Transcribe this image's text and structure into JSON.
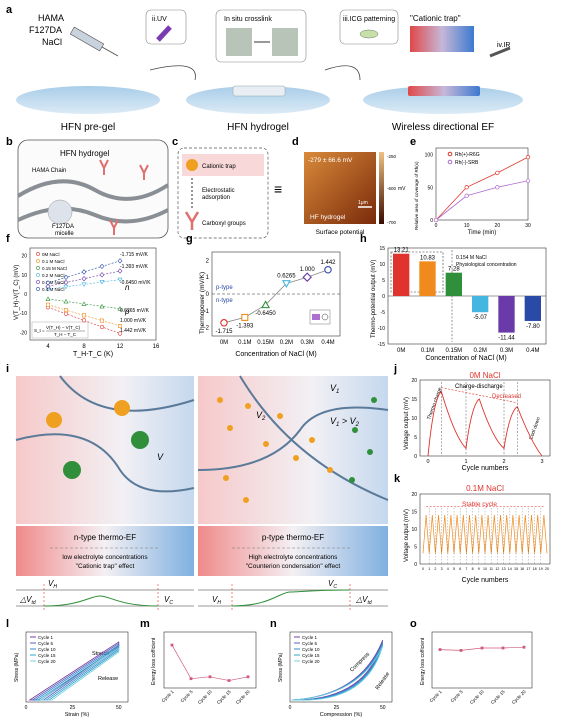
{
  "colors": {
    "red": "#e0332d",
    "orange": "#f08a1c",
    "green": "#2f8f3a",
    "cyan": "#44b6e0",
    "purple": "#6a3aa8",
    "blue": "#2a4aa8",
    "pink": "#f4c9c9",
    "lightblue": "#c9dcef"
  },
  "panel_letters": {
    "a": "a",
    "b": "b",
    "c": "c",
    "d": "d",
    "e": "e",
    "f": "f",
    "g": "g",
    "h": "h",
    "i": "i",
    "j": "j",
    "k": "k",
    "l": "l",
    "m": "m",
    "n": "n",
    "o": "o"
  },
  "a": {
    "reagents": [
      "HAMA",
      "F127DA",
      "NaCl"
    ],
    "step1": "ii.UV",
    "step2": "In situ crosslink",
    "step3": "iii.ICG patterning",
    "trap": "\"Cationic trap\"",
    "step4": "iv.IR",
    "label1": "HFN pre-gel",
    "label2": "HFN hydrogel",
    "label3": "Wireless directional EF"
  },
  "b": {
    "title": "HFN hydrogel",
    "chain": "HAMA Chain",
    "micelle1": "F127DA",
    "micelle2": "micelle"
  },
  "c": {
    "item1": "Cationic trap",
    "item2a": "Electrostatic",
    "item2b": "adsorption",
    "item3": "Carboxyl groups"
  },
  "d": {
    "value": "-279 ± 66.6 mV",
    "scale": "1μm",
    "label": "HF hydrogel",
    "caption": "Surface potential",
    "unit": "mV",
    "ticks": [
      "-250",
      "-600",
      "-700"
    ]
  },
  "e": {
    "ylabel": "Relative area of coverage of Rh(x)",
    "xlabel": "Time (min)",
    "legend": [
      "Rh(+)-R6G",
      "Rh(-)-SRB"
    ],
    "yticks": [
      "0",
      "50",
      "100"
    ],
    "xticks": [
      "0",
      "10",
      "20",
      "30"
    ]
  },
  "f": {
    "ylabel": "V(T_H)-V(T_C) (mV)",
    "xlabel": "T_H-T_C (K)",
    "legend": [
      "0M NaCl",
      "0.1 M NaCl",
      "0.15 M NaCl",
      "0.2 M NaCl",
      "0.3 M NaCl",
      "0.4 M NaCl"
    ],
    "values": [
      "-1.715 mV/K",
      "-1.393 mV/K",
      "-0.6450 mV/K",
      "0.6265 mV/K",
      "1.000 mV/K",
      "1.442 mV/K"
    ],
    "xticks": [
      "4",
      "8",
      "12",
      "16"
    ],
    "yticks": [
      "20",
      "10",
      "0",
      "-10",
      "-20"
    ],
    "n_label": "n",
    "p_label": "p",
    "formula_a": "S_t = ",
    "formula_b": "V(T_H) − V(T_C)",
    "formula_c": "T_H − T_C"
  },
  "g": {
    "ylabel": "Thermopower (mV/K)",
    "xlabel": "Concentration of NaCl (M)",
    "ptype": "p-type",
    "ntype": "n-type",
    "yticks": [
      "2",
      "1",
      "0",
      "-1",
      "-2"
    ]
  },
  "h": {
    "ylabel": "Thermo-potential output (mV)",
    "xlabel": "Concentration of NaCl (M)",
    "note_a": "0.154 M NaCl",
    "note_b": "Physiological concentration",
    "yticks": [
      "15",
      "10",
      "5",
      "0",
      "-5",
      "-10",
      "-15"
    ]
  },
  "i": {
    "v1": "V",
    "v1sub": "1",
    "v2": "V",
    "v2sub": "2",
    "vcomp_a": "V",
    "vcomp_b": "1",
    "vcomp_c": " > V",
    "vcomp_d": "2",
    "vsingle": "V",
    "ntitle": "n-type thermo-EF",
    "ptitle": "p-type thermo-EF",
    "nsub1": "low electrolyte concentrations",
    "nsub2": "\"Cationic trap\" effect",
    "psub1": "High electrolyte concentrations",
    "psub2": "\"Counterion condensation\" effect",
    "vh": "V",
    "vh_sub": "H",
    "vc": "V",
    "vc_sub": "C",
    "dv": "△V",
    "dv_sub": "td"
  },
  "j": {
    "title": "0M NaCl",
    "ylabel": "Voltage output (mV)",
    "xlabel": "Cycle numbers",
    "charge": "Charge-discharge",
    "decreased": "Decreased",
    "thermo": "Thermo charge",
    "cool": "Cool down",
    "yticks": [
      "20",
      "15",
      "10",
      "5",
      "0"
    ],
    "xticks": [
      "0",
      "1",
      "2",
      "3"
    ]
  },
  "k": {
    "title": "0.1M NaCl",
    "ylabel": "Voltage output (mV)",
    "xlabel": "Cycle numbers",
    "stable": "Stable cycle",
    "yticks": [
      "20",
      "15",
      "10",
      "5",
      "0"
    ],
    "xticks": [
      "0",
      "1",
      "2",
      "3",
      "4",
      "5",
      "6",
      "7",
      "8",
      "9",
      "10",
      "11",
      "12",
      "13",
      "14",
      "15",
      "16",
      "17",
      "18",
      "19",
      "20"
    ]
  },
  "l": {
    "ylabel": "Stress (MPa)",
    "xlabel": "Strain (%)",
    "legend": [
      "Cycle 1",
      "Cycle 5",
      "Cycle 10",
      "Cycle 15",
      "Cycle 20"
    ],
    "stretch": "Stretch",
    "release": "Release",
    "xticks": [
      "0",
      "25",
      "50"
    ]
  },
  "m": {
    "ylabel": "Energy loss cofficient",
    "categories": [
      "Cycle 1",
      "Cycle 5",
      "Cycle 10",
      "Cycle 15",
      "Cycle 20"
    ]
  },
  "n": {
    "ylabel": "Stress (MPa)",
    "xlabel": "Compression (%)",
    "legend": [
      "Cycle 1",
      "Cycle 5",
      "Cycle 10",
      "Cycle 15",
      "Cycle 20"
    ],
    "compress": "Compress",
    "release": "Release",
    "xticks": [
      "0",
      "25",
      "50"
    ]
  },
  "o": {
    "ylabel": "Energy loss cofficient",
    "categories": [
      "Cycle 1",
      "Cycle 5",
      "Cycle 10",
      "Cycle 15",
      "Cycle 20"
    ]
  },
  "chart_data": [
    {
      "panel": "e",
      "type": "line",
      "xlabel": "Time (min)",
      "ylabel": "Relative area of coverage of Rh(x)",
      "x": [
        0,
        10,
        20,
        30
      ],
      "series": [
        {
          "name": "Rh(+)-R6G",
          "values": [
            0,
            50,
            72,
            96
          ]
        },
        {
          "name": "Rh(-)-SRB",
          "values": [
            0,
            37,
            50,
            60
          ]
        }
      ],
      "ylim": [
        0,
        110
      ],
      "xlim": [
        0,
        30
      ]
    },
    {
      "panel": "f",
      "type": "scatter",
      "xlabel": "T_H-T_C (K)",
      "ylabel": "V(T_H)-V(T_C) (mV)",
      "x": [
        4,
        6,
        8,
        10,
        12
      ],
      "xlim": [
        2,
        16
      ],
      "ylim": [
        -24,
        24
      ],
      "series": [
        {
          "name": "0M NaCl",
          "values": [
            -6.9,
            -10.3,
            -13.7,
            -17.2,
            -20.6
          ]
        },
        {
          "name": "0.1 M NaCl",
          "values": [
            -5.6,
            -8.4,
            -11.1,
            -13.9,
            -16.7
          ]
        },
        {
          "name": "0.15 M NaCl",
          "values": [
            -2.6,
            -3.9,
            -5.2,
            -6.5,
            -7.7
          ]
        },
        {
          "name": "0.2 M NaCl",
          "values": [
            2.5,
            3.8,
            5.0,
            6.3,
            7.5
          ]
        },
        {
          "name": "0.3 M NaCl",
          "values": [
            4.0,
            6.0,
            8.0,
            10.0,
            12.0
          ]
        },
        {
          "name": "0.4 M NaCl",
          "values": [
            5.8,
            8.7,
            11.5,
            14.4,
            17.3
          ]
        }
      ]
    },
    {
      "panel": "g",
      "type": "line",
      "xlabel": "Concentration of NaCl (M)",
      "ylabel": "Thermopower (mV/K)",
      "categories": [
        "0M",
        "0.1M",
        "0.15M",
        "0.2M",
        "0.3M",
        "0.4M"
      ],
      "values": [
        -1.715,
        -1.393,
        -0.645,
        0.6265,
        1.0,
        1.442
      ],
      "ylim": [
        -2.5,
        2.5
      ]
    },
    {
      "panel": "h",
      "type": "bar",
      "xlabel": "Concentration of NaCl (M)",
      "ylabel": "Thermo-potential output (mV)",
      "categories": [
        "0M",
        "0.1M",
        "0.15M",
        "0.2M",
        "0.3M",
        "0.4M"
      ],
      "values": [
        13.21,
        10.83,
        7.28,
        -5.07,
        -11.44,
        -7.8
      ],
      "ylim": [
        -15,
        15
      ]
    },
    {
      "panel": "m",
      "type": "line",
      "ylabel": "Energy loss cofficient",
      "categories": [
        "Cycle 1",
        "Cycle 5",
        "Cycle 10",
        "Cycle 15",
        "Cycle 20"
      ],
      "values": [
        0.23,
        0.05,
        0.06,
        0.04,
        0.06
      ],
      "ylim": [
        0,
        0.3
      ]
    },
    {
      "panel": "o",
      "type": "line",
      "ylabel": "Energy loss cofficient",
      "categories": [
        "Cycle 1",
        "Cycle 5",
        "Cycle 10",
        "Cycle 15",
        "Cycle 20"
      ],
      "values": [
        0.24,
        0.235,
        0.25,
        0.25,
        0.255
      ],
      "ylim": [
        0,
        0.35
      ]
    }
  ]
}
